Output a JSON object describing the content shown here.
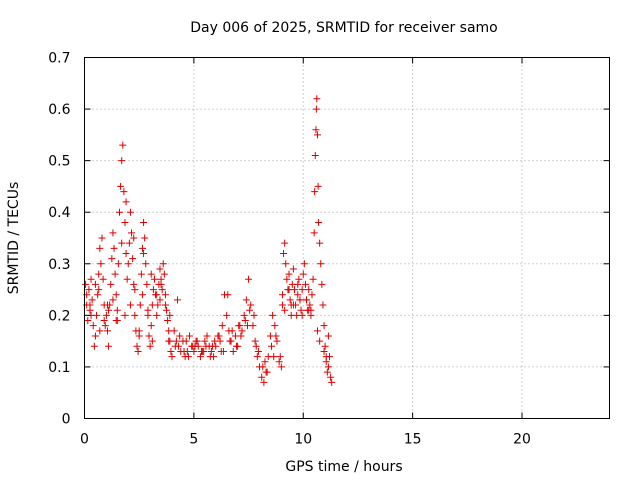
{
  "chart_data": {
    "type": "scatter",
    "title": "Day 006 of 2025, SRMTID for receiver samo",
    "xlabel": "GPS time / hours",
    "ylabel": "SRMTID / TECUs",
    "xlim": [
      0,
      24
    ],
    "ylim": [
      0,
      0.7
    ],
    "xticks": [
      0,
      5,
      10,
      15,
      20
    ],
    "yticks": [
      0,
      0.1,
      0.2,
      0.3,
      0.4,
      0.5,
      0.6,
      0.7
    ],
    "xtick_labels": [
      "0",
      "5",
      "10",
      "15",
      "20"
    ],
    "ytick_labels": [
      "0",
      "0.1",
      "0.2",
      "0.3",
      "0.4",
      "0.5",
      "0.6",
      "0.7"
    ],
    "grid": true,
    "marker": "+",
    "color": "#e00000",
    "series": [
      {
        "name": "SRMTID",
        "x": [
          0.05,
          0.1,
          0.15,
          0.2,
          0.25,
          0.3,
          0.35,
          0.4,
          0.45,
          0.5,
          0.55,
          0.6,
          0.65,
          0.7,
          0.75,
          0.8,
          0.85,
          0.9,
          0.95,
          1.0,
          1.05,
          1.1,
          1.15,
          1.2,
          1.25,
          1.3,
          1.35,
          1.4,
          1.45,
          1.5,
          1.55,
          1.6,
          1.65,
          1.7,
          1.75,
          1.8,
          1.85,
          1.9,
          1.95,
          2.0,
          2.05,
          2.1,
          2.15,
          2.2,
          2.25,
          2.3,
          2.35,
          2.4,
          2.45,
          2.5,
          2.55,
          2.6,
          2.65,
          2.7,
          2.75,
          2.8,
          2.85,
          2.9,
          2.95,
          3.0,
          3.05,
          3.1,
          3.15,
          3.2,
          3.25,
          3.3,
          3.35,
          3.4,
          3.45,
          3.5,
          3.55,
          3.6,
          3.65,
          3.7,
          3.75,
          3.8,
          3.85,
          3.9,
          3.95,
          4.0,
          4.1,
          4.2,
          4.3,
          4.4,
          4.5,
          4.6,
          4.7,
          4.8,
          4.9,
          5.0,
          5.1,
          5.2,
          5.3,
          5.4,
          5.5,
          5.6,
          5.7,
          5.8,
          5.9,
          6.0,
          6.1,
          6.2,
          6.3,
          6.4,
          6.5,
          6.6,
          6.7,
          6.8,
          6.9,
          7.0,
          7.1,
          7.2,
          7.3,
          7.4,
          7.5,
          7.6,
          7.7,
          7.8,
          7.9,
          8.0,
          8.1,
          8.2,
          8.3,
          8.4,
          8.5,
          8.6,
          8.7,
          8.8,
          8.9,
          9.0,
          9.05,
          9.1,
          9.15,
          9.2,
          9.25,
          9.3,
          9.35,
          9.4,
          9.45,
          9.5,
          9.55,
          9.6,
          9.65,
          9.7,
          9.75,
          9.8,
          9.85,
          9.9,
          9.95,
          10.0,
          10.05,
          10.1,
          10.15,
          10.2,
          10.25,
          10.3,
          10.35,
          10.4,
          10.45,
          10.5,
          10.52,
          10.55,
          10.58,
          10.6,
          10.62,
          10.65,
          10.68,
          10.7,
          10.75,
          10.8,
          10.85,
          10.9,
          10.95,
          11.0,
          11.05,
          11.1,
          11.15,
          11.2,
          11.25,
          11.3,
          0.1,
          0.3,
          0.5,
          0.7,
          0.9,
          1.1,
          1.3,
          1.5,
          1.7,
          1.9,
          2.1,
          2.3,
          2.5,
          2.7,
          2.9,
          3.1,
          3.3,
          3.5,
          3.7,
          3.9,
          4.15,
          4.35,
          4.55,
          4.75,
          4.95,
          5.15,
          5.35,
          5.55,
          5.75,
          5.95,
          6.15,
          6.35,
          6.55,
          6.75,
          6.95,
          7.15,
          7.35,
          7.55,
          7.75,
          7.95,
          8.15,
          8.35,
          8.55,
          8.75,
          8.95,
          9.15,
          9.35,
          9.55,
          9.75,
          9.95,
          10.15,
          10.35,
          10.75,
          10.95,
          11.15,
          0.25,
          0.65,
          1.05,
          1.45,
          1.85,
          2.25,
          2.65,
          3.05,
          3.45,
          3.85,
          4.25,
          4.65,
          5.05,
          5.45,
          5.85,
          6.25,
          6.65,
          7.05,
          7.45,
          7.85,
          8.25,
          8.65,
          9.05,
          9.45,
          9.85,
          10.25,
          10.65,
          11.05
        ],
        "y": [
          0.26,
          0.22,
          0.19,
          0.25,
          0.21,
          0.27,
          0.23,
          0.18,
          0.14,
          0.16,
          0.2,
          0.24,
          0.28,
          0.33,
          0.3,
          0.35,
          0.27,
          0.22,
          0.18,
          0.2,
          0.17,
          0.14,
          0.22,
          0.26,
          0.31,
          0.36,
          0.33,
          0.28,
          0.24,
          0.21,
          0.3,
          0.4,
          0.45,
          0.5,
          0.53,
          0.44,
          0.38,
          0.32,
          0.27,
          0.3,
          0.34,
          0.4,
          0.36,
          0.31,
          0.26,
          0.2,
          0.17,
          0.14,
          0.13,
          0.16,
          0.22,
          0.28,
          0.33,
          0.38,
          0.35,
          0.3,
          0.26,
          0.2,
          0.16,
          0.14,
          0.18,
          0.22,
          0.25,
          0.27,
          0.24,
          0.2,
          0.22,
          0.26,
          0.23,
          0.27,
          0.25,
          0.3,
          0.28,
          0.24,
          0.21,
          0.19,
          0.17,
          0.15,
          0.13,
          0.12,
          0.17,
          0.15,
          0.14,
          0.13,
          0.15,
          0.12,
          0.13,
          0.16,
          0.14,
          0.13,
          0.15,
          0.14,
          0.12,
          0.13,
          0.15,
          0.16,
          0.14,
          0.13,
          0.12,
          0.14,
          0.16,
          0.15,
          0.18,
          0.24,
          0.2,
          0.17,
          0.15,
          0.13,
          0.16,
          0.14,
          0.18,
          0.17,
          0.2,
          0.23,
          0.27,
          0.22,
          0.18,
          0.15,
          0.12,
          0.1,
          0.08,
          0.07,
          0.09,
          0.12,
          0.16,
          0.2,
          0.18,
          0.15,
          0.11,
          0.1,
          0.24,
          0.32,
          0.34,
          0.3,
          0.27,
          0.25,
          0.28,
          0.23,
          0.2,
          0.26,
          0.29,
          0.25,
          0.22,
          0.2,
          0.24,
          0.27,
          0.23,
          0.21,
          0.25,
          0.28,
          0.3,
          0.26,
          0.23,
          0.21,
          0.25,
          0.22,
          0.2,
          0.24,
          0.27,
          0.36,
          0.44,
          0.51,
          0.56,
          0.6,
          0.62,
          0.55,
          0.45,
          0.38,
          0.34,
          0.3,
          0.26,
          0.22,
          0.18,
          0.14,
          0.11,
          0.09,
          0.1,
          0.12,
          0.08,
          0.07,
          0.24,
          0.2,
          0.26,
          0.17,
          0.19,
          0.21,
          0.23,
          0.19,
          0.34,
          0.42,
          0.22,
          0.25,
          0.17,
          0.32,
          0.21,
          0.15,
          0.24,
          0.26,
          0.22,
          0.2,
          0.14,
          0.16,
          0.13,
          0.12,
          0.14,
          0.15,
          0.13,
          0.14,
          0.12,
          0.15,
          0.16,
          0.13,
          0.24,
          0.17,
          0.14,
          0.16,
          0.19,
          0.21,
          0.2,
          0.13,
          0.1,
          0.09,
          0.14,
          0.16,
          0.12,
          0.21,
          0.25,
          0.22,
          0.26,
          0.2,
          0.23,
          0.21,
          0.15,
          0.13,
          0.16,
          0.22,
          0.25,
          0.22,
          0.19,
          0.2,
          0.35,
          0.24,
          0.28,
          0.29,
          0.15,
          0.23,
          0.15,
          0.14,
          0.13,
          0.14,
          0.13,
          0.15,
          0.18,
          0.18,
          0.14,
          0.11,
          0.12,
          0.22,
          0.22,
          0.23,
          0.21,
          0.17,
          0.12
        ]
      }
    ]
  }
}
